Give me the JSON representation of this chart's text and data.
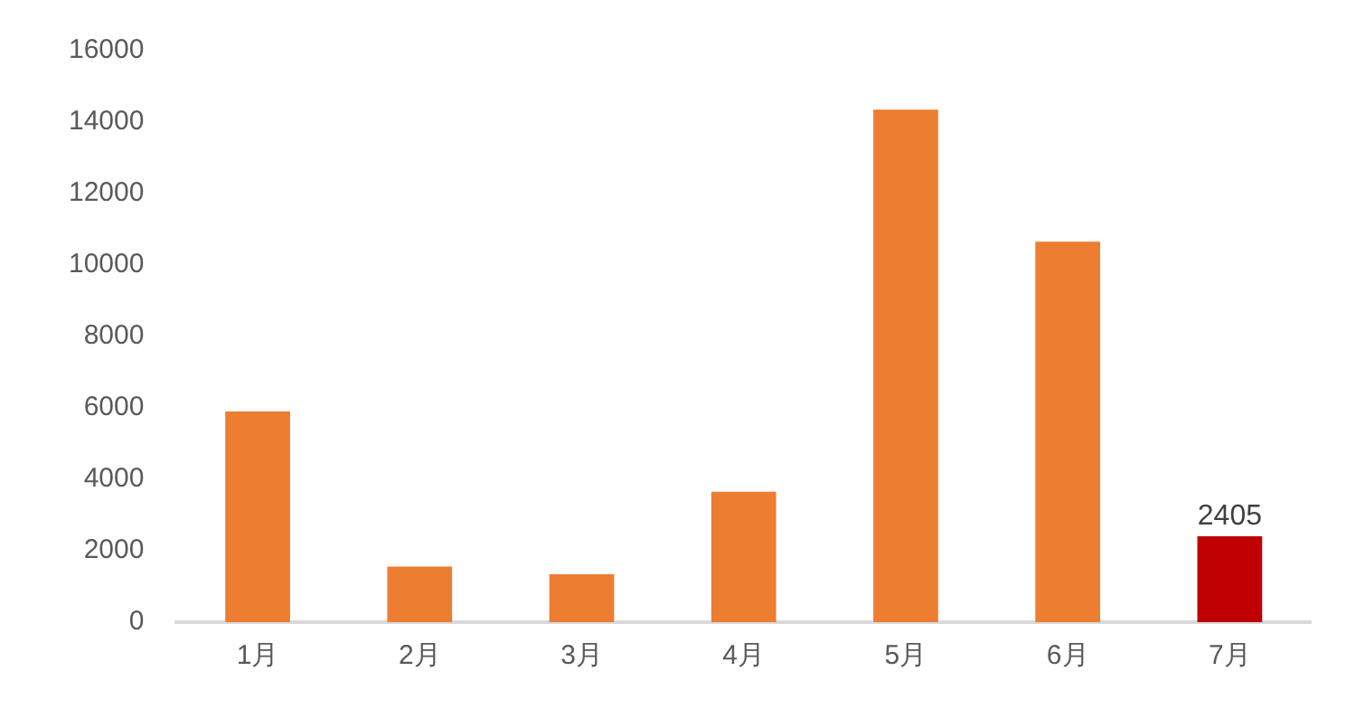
{
  "chart_data": {
    "type": "bar",
    "categories": [
      "1月",
      "2月",
      "3月",
      "4月",
      "5月",
      "6月",
      "7月"
    ],
    "values": [
      5900,
      1560,
      1340,
      3650,
      14350,
      10650,
      2405
    ],
    "colors": [
      "#ed7d31",
      "#ed7d31",
      "#ed7d31",
      "#ed7d31",
      "#ed7d31",
      "#ed7d31",
      "#c00000"
    ],
    "value_labels": [
      null,
      null,
      null,
      null,
      null,
      null,
      "2405"
    ],
    "ylim": [
      0,
      16000
    ],
    "yticks": [
      0,
      2000,
      4000,
      6000,
      8000,
      10000,
      12000,
      14000,
      16000
    ],
    "grid": false,
    "legend": false
  }
}
